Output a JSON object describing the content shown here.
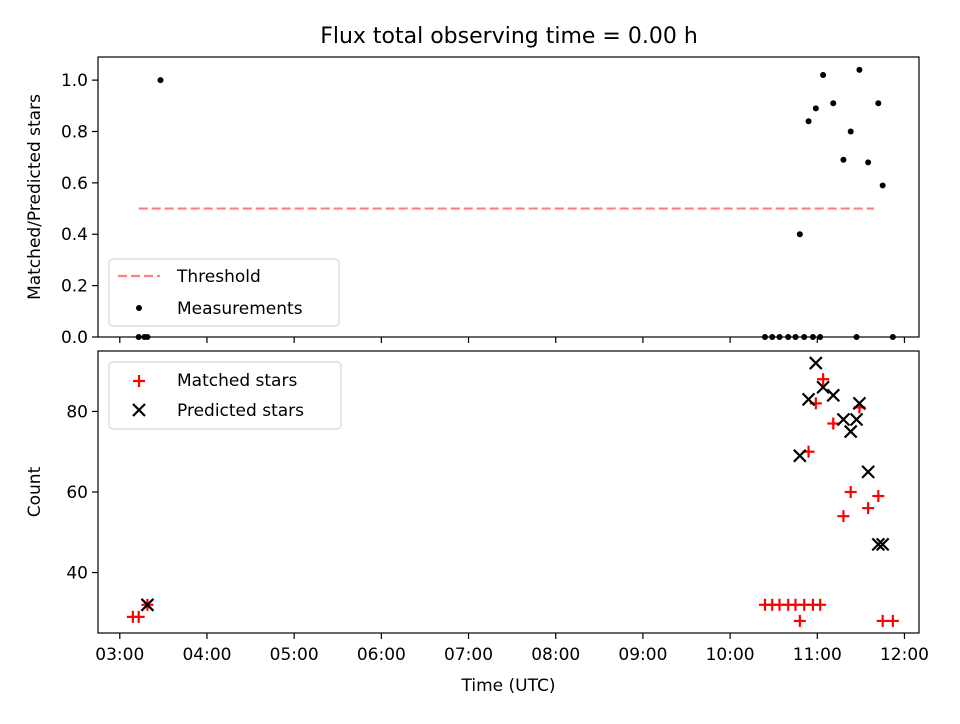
{
  "figure": {
    "title": "Flux total observing time = 0.00 h"
  },
  "chart_data": [
    {
      "type": "scatter",
      "ylabel": "Matched/Predicted stars",
      "xlabel": "",
      "xlim": [
        "02:45",
        "12:10"
      ],
      "ylim": [
        0,
        1.09
      ],
      "yticks": [
        0.0,
        0.2,
        0.4,
        0.6,
        0.8,
        1.0
      ],
      "ytick_labels": [
        "0.0",
        "0.2",
        "0.4",
        "0.6",
        "0.8",
        "1.0"
      ],
      "legend": "lower-left",
      "threshold": {
        "name": "Threshold",
        "color": "#ff7f7f",
        "style": "dashed",
        "y": 0.5,
        "x_start": "03:13",
        "x_end": "11:39"
      },
      "series": [
        {
          "name": "Measurements",
          "color": "#000000",
          "marker": "dot",
          "x": [
            "03:13",
            "03:17",
            "03:19",
            "03:28",
            "10:24",
            "10:29",
            "10:34",
            "10:40",
            "10:45",
            "10:51",
            "10:57",
            "11:02",
            "10:48",
            "10:54",
            "10:59",
            "11:04",
            "11:11",
            "11:18",
            "11:23",
            "11:27",
            "11:29",
            "11:35",
            "11:42",
            "11:45",
            "11:52"
          ],
          "y": [
            0,
            0,
            0,
            1.0,
            0,
            0,
            0,
            0,
            0,
            0,
            0,
            0,
            0.4,
            0.84,
            0.89,
            1.02,
            0.91,
            0.69,
            0.8,
            0.0,
            1.04,
            0.68,
            0.91,
            0.59,
            0
          ]
        }
      ]
    },
    {
      "type": "scatter",
      "ylabel": "Count",
      "xlabel": "Time (UTC)",
      "xlim": [
        "02:45",
        "12:10"
      ],
      "ylim": [
        25,
        95
      ],
      "yticks": [
        40,
        60,
        80
      ],
      "ytick_labels": [
        "40",
        "60",
        "80"
      ],
      "xticks": [
        "03:00",
        "04:00",
        "05:00",
        "06:00",
        "07:00",
        "08:00",
        "09:00",
        "10:00",
        "11:00",
        "12:00"
      ],
      "xtick_labels": [
        "03:00",
        "04:00",
        "05:00",
        "06:00",
        "07:00",
        "08:00",
        "09:00",
        "10:00",
        "11:00",
        "12:00"
      ],
      "legend": "upper-left",
      "series": [
        {
          "name": "Matched stars",
          "color": "#ff0000",
          "marker": "plus",
          "x": [
            "03:09",
            "03:13",
            "03:19",
            "10:24",
            "10:29",
            "10:34",
            "10:40",
            "10:45",
            "10:51",
            "10:57",
            "11:02",
            "10:48",
            "10:54",
            "10:59",
            "11:04",
            "11:11",
            "11:18",
            "11:23",
            "11:29",
            "11:35",
            "11:42",
            "11:45",
            "11:52"
          ],
          "y": [
            29,
            29,
            32,
            32,
            32,
            32,
            32,
            32,
            32,
            32,
            32,
            28,
            70,
            82,
            88,
            77,
            54,
            60,
            81,
            56,
            59,
            28,
            28
          ]
        },
        {
          "name": "Predicted stars",
          "color": "#000000",
          "marker": "x",
          "x": [
            "03:19",
            "10:48",
            "10:54",
            "10:59",
            "11:04",
            "11:11",
            "11:18",
            "11:23",
            "11:27",
            "11:29",
            "11:35",
            "11:42",
            "11:45"
          ],
          "y": [
            32,
            69,
            83,
            92,
            86,
            84,
            78,
            75,
            78,
            82,
            65,
            47,
            47
          ]
        }
      ]
    }
  ]
}
